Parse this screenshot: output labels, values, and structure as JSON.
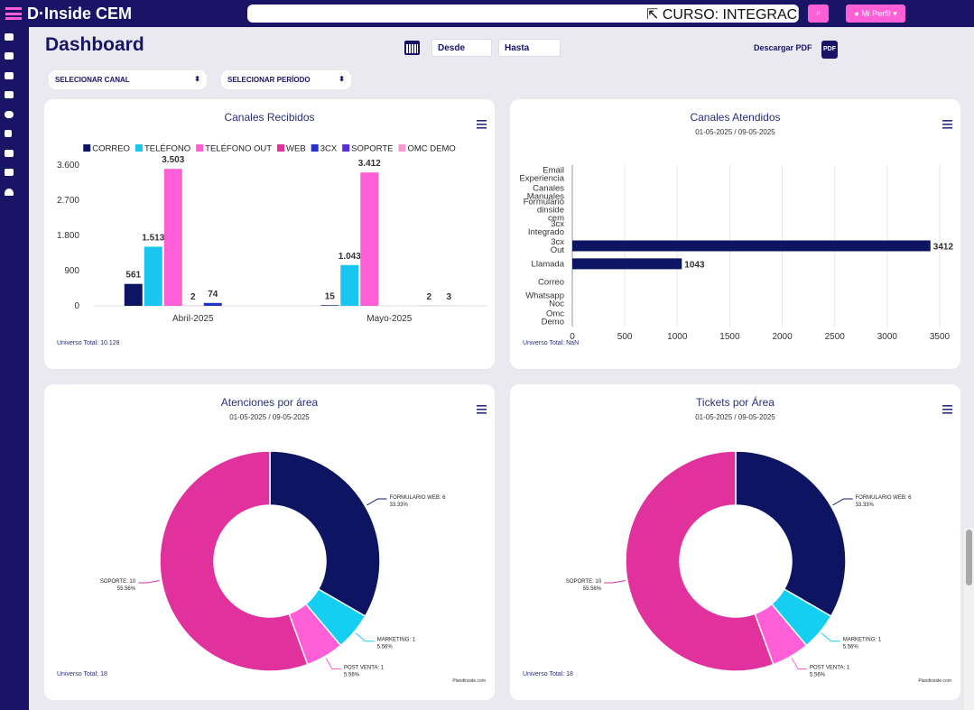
{
  "header": {
    "logo": "D·Inside CEM",
    "search": "CURSO: INTEGRACIÓ",
    "profile": "Mi Perfil"
  },
  "toolbar": {
    "title": "Dashboard",
    "from": "Desde",
    "to": "Hasta",
    "download": "Descargar PDF",
    "pdf_icon": "PDF"
  },
  "filters": [
    "SELECIONAR CANAL",
    "SELECIONAR PERÍODO"
  ],
  "chart_data": [
    {
      "type": "bar",
      "title": "Canales Recibidos",
      "categories": [
        "Abril-2025",
        "Mayo-2025"
      ],
      "series": [
        {
          "name": "CORREO",
          "color": "#0d1563",
          "values": [
            561,
            15
          ],
          "value_labels": [
            "561",
            "15"
          ]
        },
        {
          "name": "TELÉFONO",
          "color": "#19c6f0",
          "values": [
            1513,
            1043
          ],
          "value_labels": [
            "1.513",
            "1.043"
          ]
        },
        {
          "name": "TELÉFONO OUT",
          "color": "#ff5fd6",
          "values": [
            3503,
            3412
          ],
          "value_labels": [
            "3.503",
            "3.412"
          ]
        },
        {
          "name": "WEB",
          "color": "#e0319d",
          "values": [
            2,
            null
          ],
          "value_labels": [
            "2",
            null
          ]
        },
        {
          "name": "3CX",
          "color": "#2332c8",
          "values": [
            74,
            null
          ],
          "value_labels": [
            "74",
            null
          ]
        },
        {
          "name": "SOPORTE",
          "color": "#5b2fd8",
          "values": [
            null,
            2
          ],
          "value_labels": [
            null,
            "2"
          ]
        },
        {
          "name": "OMC DEMO",
          "color": "#f59bd0",
          "values": [
            null,
            3
          ],
          "value_labels": [
            null,
            "3"
          ]
        }
      ],
      "ylim": [
        0,
        3600
      ],
      "yticks": [
        0,
        900,
        {
          "value": 1800,
          "label": "1.800"
        },
        {
          "value": 2700,
          "label": "2.700"
        },
        {
          "value": 3600,
          "label": "3.600"
        }
      ],
      "grid": false,
      "legend": "top",
      "footer": "Universo Total: 10.128"
    },
    {
      "type": "hbar",
      "title": "Canales Atendidos",
      "subtitle": "01-05-2025 / 09-05-2025",
      "categories": [
        "Email Experiencia",
        "Canales Manuales",
        "Formulario dinside cem",
        "3cx Integrado",
        "3cx Out",
        "Llamada",
        "Correo",
        "Whatsapp Noc",
        "Omc Demo"
      ],
      "values": [
        0,
        0,
        0,
        0,
        3412,
        1043,
        0,
        0,
        0
      ],
      "color": "#0d1563",
      "xlim": [
        0,
        3500
      ],
      "xticks": [
        0,
        500,
        1000,
        1500,
        2000,
        2500,
        3000,
        3500
      ],
      "grid": true,
      "footer": "Universo Total: NaN"
    },
    {
      "type": "donut",
      "title": "Atenciones por área",
      "subtitle": "01-05-2025 / 09-05-2025",
      "categories": [
        "FORMULARIO WEB",
        "MARKETING",
        "POST VENTA",
        "SOPORTE"
      ],
      "values": [
        6,
        1,
        1,
        10
      ],
      "value_labels": [
        "FORMULARIO WEB: 6",
        "MARKETING: 1",
        "POST VENTA: 1",
        "SOPORTE: 10"
      ],
      "percents": [
        33.33,
        5.56,
        5.56,
        55.56
      ],
      "percent_labels": [
        "33.33%",
        "5.56%",
        "5.56%",
        "55.56%"
      ],
      "colors": [
        "#0d1563",
        "#14cff2",
        "#ff5fd6",
        "#e0319d"
      ],
      "footer": "Universo Total: 18",
      "credit": "Plandinside.com"
    },
    {
      "type": "donut",
      "title": "Tickets por Área",
      "subtitle": "01-05-2025 / 09-05-2025",
      "categories": [
        "FORMULARIO WEB",
        "MARKETING",
        "POST VENTA",
        "SOPORTE"
      ],
      "values": [
        6,
        1,
        1,
        10
      ],
      "value_labels": [
        "FORMULARIO WEB: 6",
        "MARKETING: 1",
        "POST VENTA: 1",
        "SOPORTE: 10"
      ],
      "percents": [
        33.33,
        5.56,
        5.56,
        55.56
      ],
      "percent_labels": [
        "33.33%",
        "5.56%",
        "5.56%",
        "55.56%"
      ],
      "colors": [
        "#0d1563",
        "#14cff2",
        "#ff5fd6",
        "#e0319d"
      ],
      "footer": "Universo Total: 18",
      "credit": "Plandinside.com"
    }
  ]
}
